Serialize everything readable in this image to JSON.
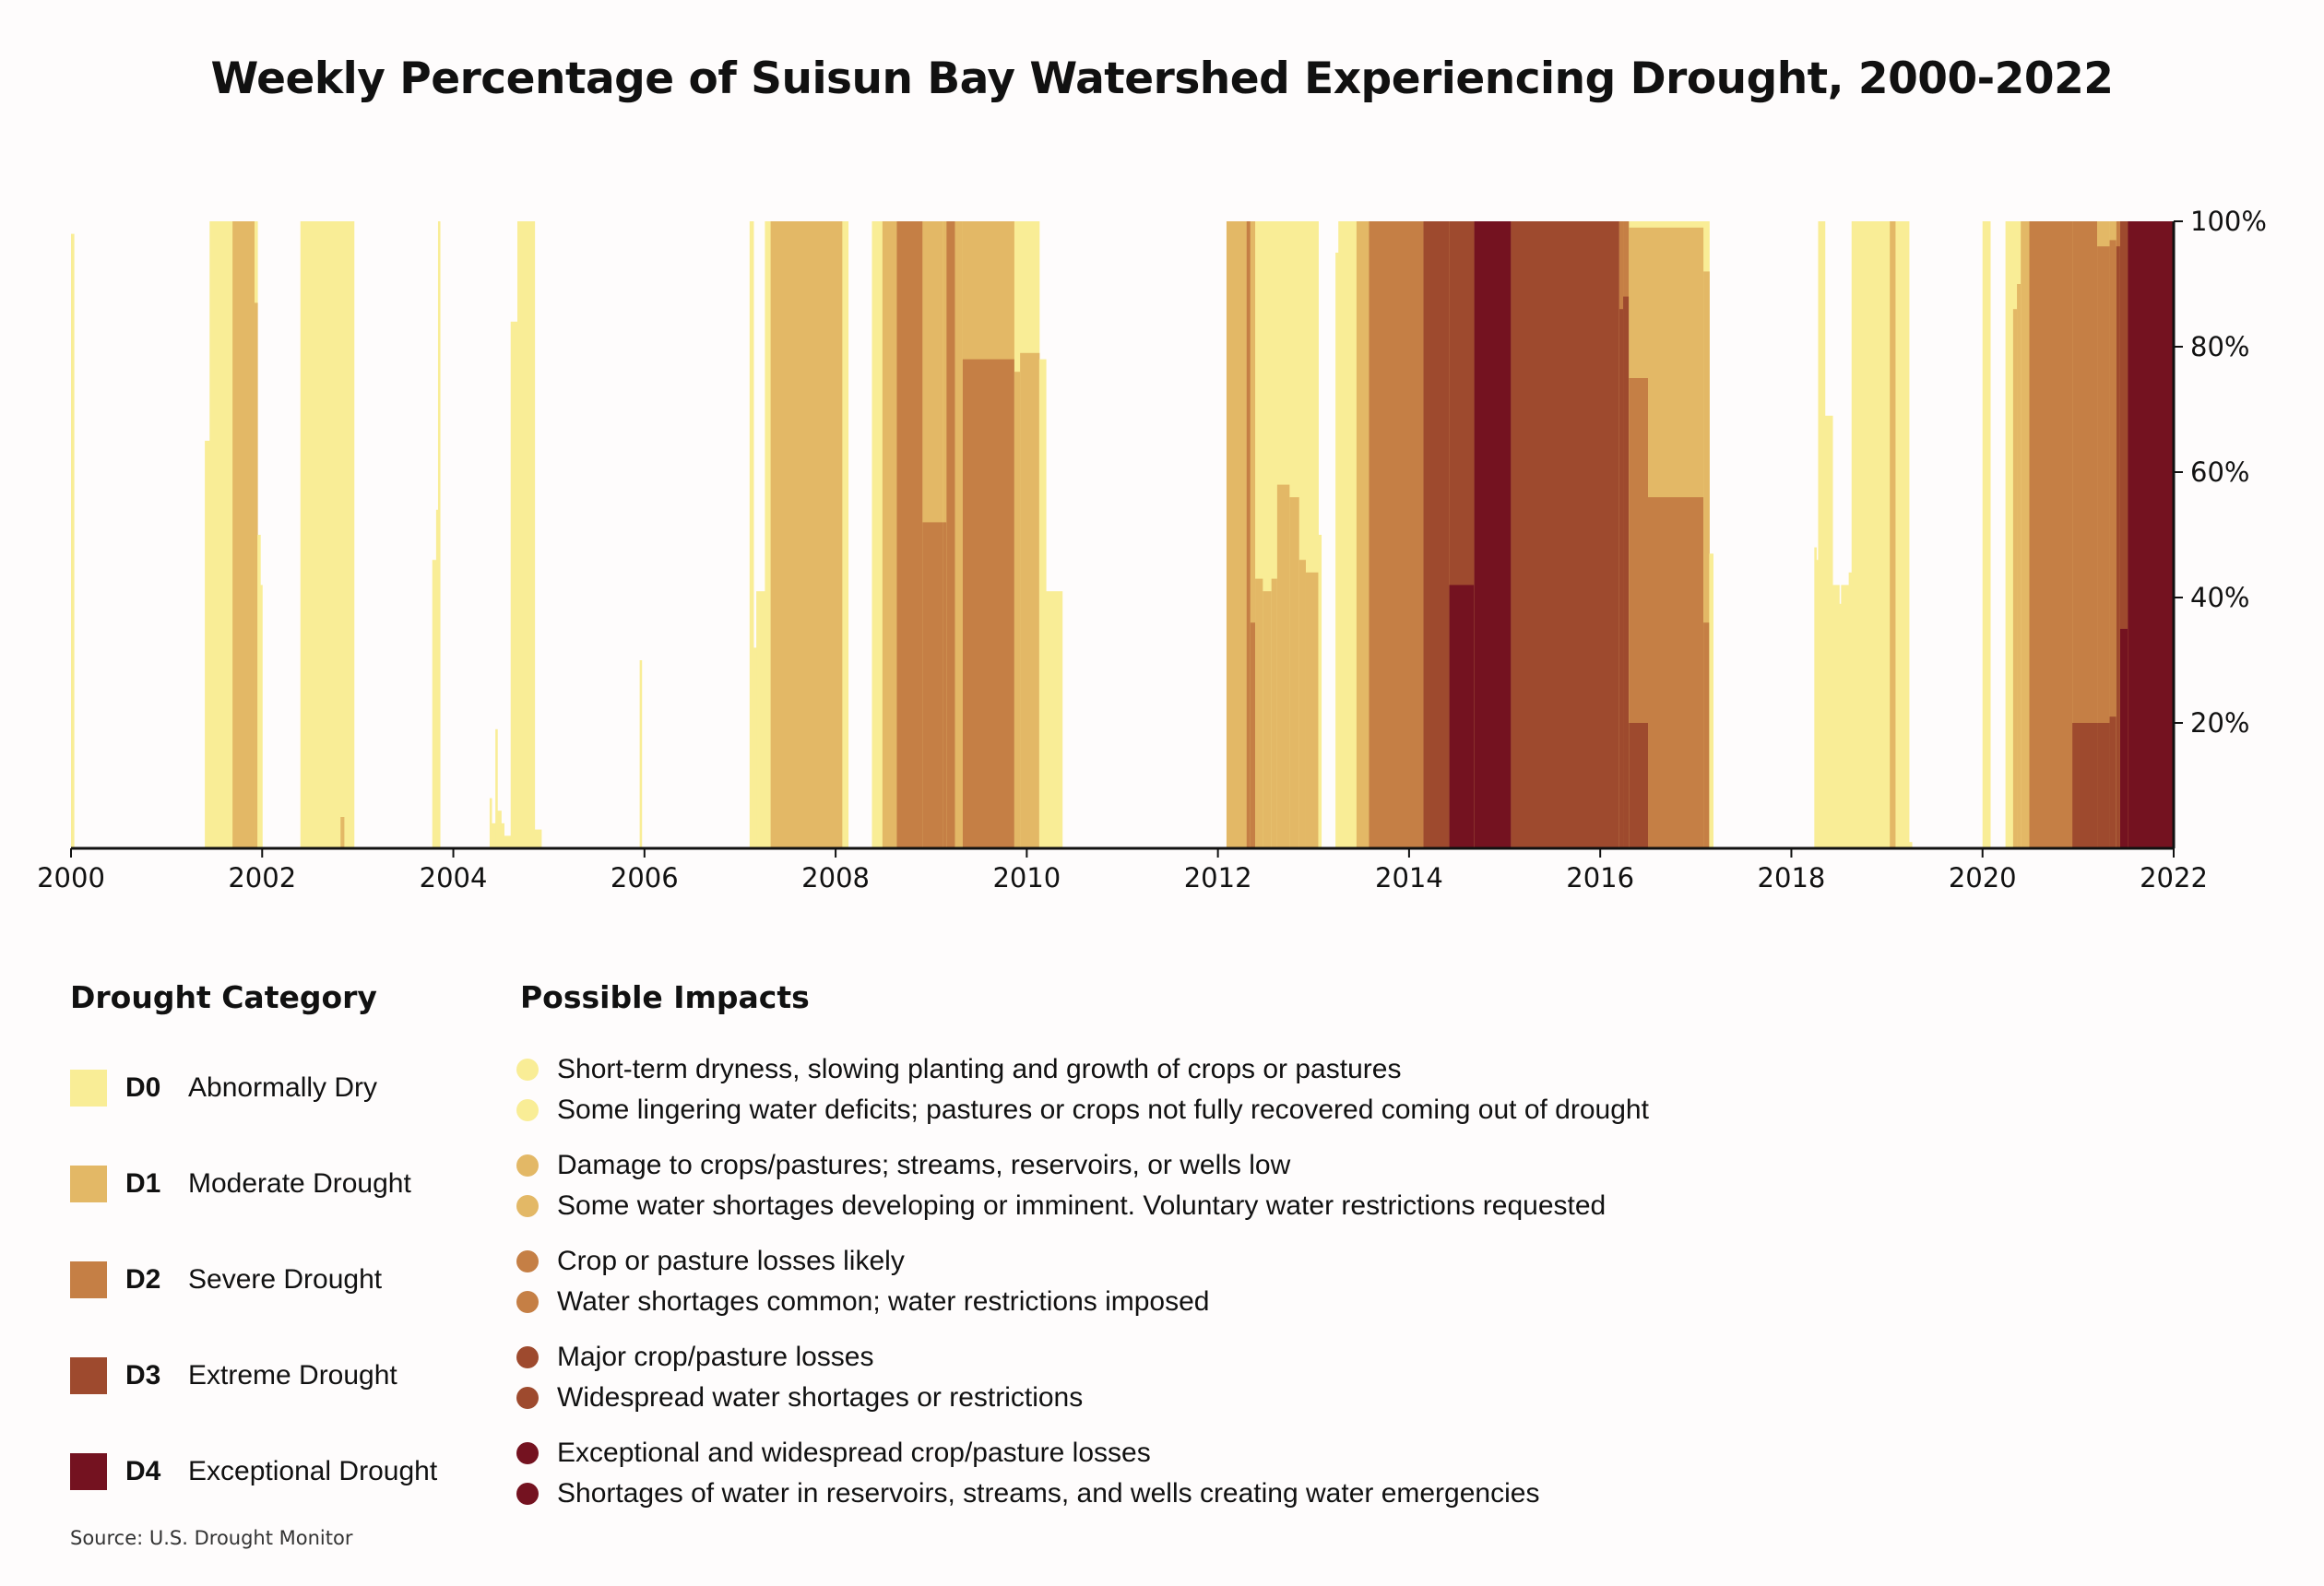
{
  "chart_data": {
    "type": "area",
    "title": "Weekly Percentage of Suisun Bay Watershed Experiencing Drought, 2000-2022",
    "xlabel": "",
    "ylabel": "",
    "xlim": [
      2000,
      2022
    ],
    "ylim": [
      0,
      100
    ],
    "x_ticks": [
      "2000",
      "2002",
      "2004",
      "2006",
      "2008",
      "2010",
      "2012",
      "2014",
      "2016",
      "2018",
      "2020",
      "2022"
    ],
    "x_tick_values": [
      2000,
      2002,
      2004,
      2006,
      2008,
      2010,
      2012,
      2014,
      2016,
      2018,
      2020,
      2022
    ],
    "y_ticks": [
      "20%",
      "40%",
      "60%",
      "80%",
      "100%"
    ],
    "y_tick_values": [
      20,
      40,
      60,
      80,
      100
    ],
    "y_axis_side": "right",
    "grid": false,
    "stacking": "cumulative (percent of area in category or worse)",
    "categories": [
      "D0",
      "D1",
      "D2",
      "D3",
      "D4"
    ],
    "colors": {
      "D0": "#f9ed96",
      "D1": "#e3b866",
      "D2": "#c57f45",
      "D3": "#9e4a2e",
      "D4": "#741220"
    },
    "segments": [
      {
        "start": 2000.0,
        "end": 2000.03,
        "D0": 98,
        "D1": 0,
        "D2": 0,
        "D3": 0,
        "D4": 0
      },
      {
        "start": 2001.4,
        "end": 2001.45,
        "D0": 65,
        "D1": 0,
        "D2": 0,
        "D3": 0,
        "D4": 0
      },
      {
        "start": 2001.45,
        "end": 2001.69,
        "D0": 100,
        "D1": 0,
        "D2": 0,
        "D3": 0,
        "D4": 0
      },
      {
        "start": 2001.69,
        "end": 2001.92,
        "D0": 100,
        "D1": 100,
        "D2": 0,
        "D3": 0,
        "D4": 0
      },
      {
        "start": 2001.92,
        "end": 2001.95,
        "D0": 100,
        "D1": 87,
        "D2": 0,
        "D3": 0,
        "D4": 0
      },
      {
        "start": 2001.95,
        "end": 2001.98,
        "D0": 50,
        "D1": 0,
        "D2": 0,
        "D3": 0,
        "D4": 0
      },
      {
        "start": 2001.98,
        "end": 2002.0,
        "D0": 42,
        "D1": 0,
        "D2": 0,
        "D3": 0,
        "D4": 0
      },
      {
        "start": 2002.4,
        "end": 2002.82,
        "D0": 100,
        "D1": 0,
        "D2": 0,
        "D3": 0,
        "D4": 0
      },
      {
        "start": 2002.82,
        "end": 2002.86,
        "D0": 100,
        "D1": 5,
        "D2": 0,
        "D3": 0,
        "D4": 0
      },
      {
        "start": 2002.86,
        "end": 2002.96,
        "D0": 100,
        "D1": 0,
        "D2": 0,
        "D3": 0,
        "D4": 0
      },
      {
        "start": 2003.78,
        "end": 2003.82,
        "D0": 46,
        "D1": 0,
        "D2": 0,
        "D3": 0,
        "D4": 0
      },
      {
        "start": 2003.82,
        "end": 2003.84,
        "D0": 54,
        "D1": 0,
        "D2": 0,
        "D3": 0,
        "D4": 0
      },
      {
        "start": 2003.84,
        "end": 2003.86,
        "D0": 100,
        "D1": 0,
        "D2": 0,
        "D3": 0,
        "D4": 0
      },
      {
        "start": 2004.38,
        "end": 2004.4,
        "D0": 8,
        "D1": 0,
        "D2": 0,
        "D3": 0,
        "D4": 0
      },
      {
        "start": 2004.4,
        "end": 2004.44,
        "D0": 4,
        "D1": 0,
        "D2": 0,
        "D3": 0,
        "D4": 0
      },
      {
        "start": 2004.44,
        "end": 2004.46,
        "D0": 19,
        "D1": 0,
        "D2": 0,
        "D3": 0,
        "D4": 0
      },
      {
        "start": 2004.46,
        "end": 2004.5,
        "D0": 6,
        "D1": 0,
        "D2": 0,
        "D3": 0,
        "D4": 0
      },
      {
        "start": 2004.5,
        "end": 2004.53,
        "D0": 4,
        "D1": 0,
        "D2": 0,
        "D3": 0,
        "D4": 0
      },
      {
        "start": 2004.53,
        "end": 2004.6,
        "D0": 2,
        "D1": 0,
        "D2": 0,
        "D3": 0,
        "D4": 0
      },
      {
        "start": 2004.6,
        "end": 2004.67,
        "D0": 84,
        "D1": 0,
        "D2": 0,
        "D3": 0,
        "D4": 0
      },
      {
        "start": 2004.67,
        "end": 2004.85,
        "D0": 100,
        "D1": 0,
        "D2": 0,
        "D3": 0,
        "D4": 0
      },
      {
        "start": 2004.85,
        "end": 2004.92,
        "D0": 3,
        "D1": 0,
        "D2": 0,
        "D3": 0,
        "D4": 0
      },
      {
        "start": 2005.95,
        "end": 2005.97,
        "D0": 30,
        "D1": 0,
        "D2": 0,
        "D3": 0,
        "D4": 0
      },
      {
        "start": 2007.1,
        "end": 2007.14,
        "D0": 100,
        "D1": 0,
        "D2": 0,
        "D3": 0,
        "D4": 0
      },
      {
        "start": 2007.14,
        "end": 2007.17,
        "D0": 32,
        "D1": 0,
        "D2": 0,
        "D3": 0,
        "D4": 0
      },
      {
        "start": 2007.17,
        "end": 2007.26,
        "D0": 41,
        "D1": 0,
        "D2": 0,
        "D3": 0,
        "D4": 0
      },
      {
        "start": 2007.26,
        "end": 2007.32,
        "D0": 100,
        "D1": 0,
        "D2": 0,
        "D3": 0,
        "D4": 0
      },
      {
        "start": 2007.32,
        "end": 2008.07,
        "D0": 100,
        "D1": 100,
        "D2": 0,
        "D3": 0,
        "D4": 0
      },
      {
        "start": 2008.07,
        "end": 2008.13,
        "D0": 100,
        "D1": 0,
        "D2": 0,
        "D3": 0,
        "D4": 0
      },
      {
        "start": 2008.38,
        "end": 2008.49,
        "D0": 100,
        "D1": 0,
        "D2": 0,
        "D3": 0,
        "D4": 0
      },
      {
        "start": 2008.49,
        "end": 2008.64,
        "D0": 100,
        "D1": 100,
        "D2": 0,
        "D3": 0,
        "D4": 0
      },
      {
        "start": 2008.64,
        "end": 2008.91,
        "D0": 100,
        "D1": 100,
        "D2": 100,
        "D3": 0,
        "D4": 0
      },
      {
        "start": 2008.91,
        "end": 2009.12,
        "D0": 100,
        "D1": 100,
        "D2": 52,
        "D3": 0,
        "D4": 0
      },
      {
        "start": 2009.12,
        "end": 2009.16,
        "D0": 100,
        "D1": 100,
        "D2": 52,
        "D3": 0,
        "D4": 0
      },
      {
        "start": 2009.16,
        "end": 2009.25,
        "D0": 100,
        "D1": 100,
        "D2": 100,
        "D3": 0,
        "D4": 0
      },
      {
        "start": 2009.25,
        "end": 2009.33,
        "D0": 100,
        "D1": 100,
        "D2": 0,
        "D3": 0,
        "D4": 0
      },
      {
        "start": 2009.33,
        "end": 2009.87,
        "D0": 100,
        "D1": 100,
        "D2": 78,
        "D3": 0,
        "D4": 0
      },
      {
        "start": 2009.87,
        "end": 2009.93,
        "D0": 100,
        "D1": 76,
        "D2": 0,
        "D3": 0,
        "D4": 0
      },
      {
        "start": 2009.93,
        "end": 2010.13,
        "D0": 100,
        "D1": 79,
        "D2": 0,
        "D3": 0,
        "D4": 0
      },
      {
        "start": 2010.13,
        "end": 2010.2,
        "D0": 78,
        "D1": 0,
        "D2": 0,
        "D3": 0,
        "D4": 0
      },
      {
        "start": 2010.2,
        "end": 2010.37,
        "D0": 41,
        "D1": 0,
        "D2": 0,
        "D3": 0,
        "D4": 0
      },
      {
        "start": 2012.09,
        "end": 2012.3,
        "D0": 100,
        "D1": 100,
        "D2": 0,
        "D3": 0,
        "D4": 0
      },
      {
        "start": 2012.3,
        "end": 2012.34,
        "D0": 100,
        "D1": 100,
        "D2": 100,
        "D3": 0,
        "D4": 0
      },
      {
        "start": 2012.34,
        "end": 2012.39,
        "D0": 100,
        "D1": 100,
        "D2": 36,
        "D3": 0,
        "D4": 0
      },
      {
        "start": 2012.39,
        "end": 2012.47,
        "D0": 100,
        "D1": 43,
        "D2": 0,
        "D3": 0,
        "D4": 0
      },
      {
        "start": 2012.47,
        "end": 2012.56,
        "D0": 100,
        "D1": 41,
        "D2": 0,
        "D3": 0,
        "D4": 0
      },
      {
        "start": 2012.56,
        "end": 2012.62,
        "D0": 100,
        "D1": 43,
        "D2": 0,
        "D3": 0,
        "D4": 0
      },
      {
        "start": 2012.62,
        "end": 2012.75,
        "D0": 100,
        "D1": 58,
        "D2": 0,
        "D3": 0,
        "D4": 0
      },
      {
        "start": 2012.75,
        "end": 2012.85,
        "D0": 100,
        "D1": 56,
        "D2": 0,
        "D3": 0,
        "D4": 0
      },
      {
        "start": 2012.85,
        "end": 2012.92,
        "D0": 100,
        "D1": 46,
        "D2": 0,
        "D3": 0,
        "D4": 0
      },
      {
        "start": 2012.92,
        "end": 2013.05,
        "D0": 100,
        "D1": 44,
        "D2": 0,
        "D3": 0,
        "D4": 0
      },
      {
        "start": 2013.05,
        "end": 2013.08,
        "D0": 50,
        "D1": 0,
        "D2": 0,
        "D3": 0,
        "D4": 0
      },
      {
        "start": 2013.23,
        "end": 2013.26,
        "D0": 95,
        "D1": 0,
        "D2": 0,
        "D3": 0,
        "D4": 0
      },
      {
        "start": 2013.26,
        "end": 2013.45,
        "D0": 100,
        "D1": 0,
        "D2": 0,
        "D3": 0,
        "D4": 0
      },
      {
        "start": 2013.45,
        "end": 2013.58,
        "D0": 100,
        "D1": 100,
        "D2": 0,
        "D3": 0,
        "D4": 0
      },
      {
        "start": 2013.58,
        "end": 2014.15,
        "D0": 100,
        "D1": 100,
        "D2": 100,
        "D3": 0,
        "D4": 0
      },
      {
        "start": 2014.15,
        "end": 2014.42,
        "D0": 100,
        "D1": 100,
        "D2": 100,
        "D3": 100,
        "D4": 0
      },
      {
        "start": 2014.42,
        "end": 2014.68,
        "D0": 100,
        "D1": 100,
        "D2": 100,
        "D3": 100,
        "D4": 42
      },
      {
        "start": 2014.68,
        "end": 2015.07,
        "D0": 100,
        "D1": 100,
        "D2": 100,
        "D3": 100,
        "D4": 100
      },
      {
        "start": 2015.07,
        "end": 2016.2,
        "D0": 100,
        "D1": 100,
        "D2": 100,
        "D3": 100,
        "D4": 0
      },
      {
        "start": 2016.2,
        "end": 2016.24,
        "D0": 100,
        "D1": 100,
        "D2": 100,
        "D3": 86,
        "D4": 0
      },
      {
        "start": 2016.24,
        "end": 2016.3,
        "D0": 100,
        "D1": 100,
        "D2": 100,
        "D3": 88,
        "D4": 0
      },
      {
        "start": 2016.3,
        "end": 2016.5,
        "D0": 100,
        "D1": 99,
        "D2": 75,
        "D3": 20,
        "D4": 0
      },
      {
        "start": 2016.5,
        "end": 2017.08,
        "D0": 100,
        "D1": 99,
        "D2": 56,
        "D3": 0,
        "D4": 0
      },
      {
        "start": 2017.08,
        "end": 2017.14,
        "D0": 100,
        "D1": 92,
        "D2": 36,
        "D3": 0,
        "D4": 0
      },
      {
        "start": 2017.14,
        "end": 2017.18,
        "D0": 47,
        "D1": 0,
        "D2": 0,
        "D3": 0,
        "D4": 0
      },
      {
        "start": 2018.24,
        "end": 2018.26,
        "D0": 48,
        "D1": 0,
        "D2": 0,
        "D3": 0,
        "D4": 0
      },
      {
        "start": 2018.26,
        "end": 2018.28,
        "D0": 46,
        "D1": 0,
        "D2": 0,
        "D3": 0,
        "D4": 0
      },
      {
        "start": 2018.28,
        "end": 2018.35,
        "D0": 100,
        "D1": 0,
        "D2": 0,
        "D3": 0,
        "D4": 0
      },
      {
        "start": 2018.35,
        "end": 2018.43,
        "D0": 69,
        "D1": 0,
        "D2": 0,
        "D3": 0,
        "D4": 0
      },
      {
        "start": 2018.43,
        "end": 2018.5,
        "D0": 42,
        "D1": 0,
        "D2": 0,
        "D3": 0,
        "D4": 0
      },
      {
        "start": 2018.5,
        "end": 2018.52,
        "D0": 39,
        "D1": 0,
        "D2": 0,
        "D3": 0,
        "D4": 0
      },
      {
        "start": 2018.52,
        "end": 2018.6,
        "D0": 42,
        "D1": 0,
        "D2": 0,
        "D3": 0,
        "D4": 0
      },
      {
        "start": 2018.6,
        "end": 2018.63,
        "D0": 44,
        "D1": 0,
        "D2": 0,
        "D3": 0,
        "D4": 0
      },
      {
        "start": 2018.63,
        "end": 2019.03,
        "D0": 100,
        "D1": 0,
        "D2": 0,
        "D3": 0,
        "D4": 0
      },
      {
        "start": 2019.03,
        "end": 2019.09,
        "D0": 100,
        "D1": 100,
        "D2": 0,
        "D3": 0,
        "D4": 0
      },
      {
        "start": 2019.09,
        "end": 2019.23,
        "D0": 100,
        "D1": 0,
        "D2": 0,
        "D3": 0,
        "D4": 0
      },
      {
        "start": 2019.23,
        "end": 2019.26,
        "D0": 1,
        "D1": 0,
        "D2": 0,
        "D3": 0,
        "D4": 0
      },
      {
        "start": 2020.0,
        "end": 2020.08,
        "D0": 100,
        "D1": 0,
        "D2": 0,
        "D3": 0,
        "D4": 0
      },
      {
        "start": 2020.24,
        "end": 2020.32,
        "D0": 100,
        "D1": 0,
        "D2": 0,
        "D3": 0,
        "D4": 0
      },
      {
        "start": 2020.32,
        "end": 2020.36,
        "D0": 100,
        "D1": 86,
        "D2": 0,
        "D3": 0,
        "D4": 0
      },
      {
        "start": 2020.36,
        "end": 2020.4,
        "D0": 100,
        "D1": 90,
        "D2": 0,
        "D3": 0,
        "D4": 0
      },
      {
        "start": 2020.4,
        "end": 2020.49,
        "D0": 100,
        "D1": 100,
        "D2": 0,
        "D3": 0,
        "D4": 0
      },
      {
        "start": 2020.49,
        "end": 2020.94,
        "D0": 100,
        "D1": 100,
        "D2": 100,
        "D3": 0,
        "D4": 0
      },
      {
        "start": 2020.94,
        "end": 2021.2,
        "D0": 100,
        "D1": 100,
        "D2": 100,
        "D3": 20,
        "D4": 0
      },
      {
        "start": 2021.2,
        "end": 2021.33,
        "D0": 100,
        "D1": 100,
        "D2": 96,
        "D3": 20,
        "D4": 0
      },
      {
        "start": 2021.33,
        "end": 2021.4,
        "D0": 100,
        "D1": 100,
        "D2": 97,
        "D3": 21,
        "D4": 0
      },
      {
        "start": 2021.4,
        "end": 2021.44,
        "D0": 100,
        "D1": 100,
        "D2": 100,
        "D3": 96,
        "D4": 0
      },
      {
        "start": 2021.44,
        "end": 2021.52,
        "D0": 100,
        "D1": 100,
        "D2": 100,
        "D3": 100,
        "D4": 35
      },
      {
        "start": 2021.52,
        "end": 2022.0,
        "D0": 100,
        "D1": 100,
        "D2": 100,
        "D3": 100,
        "D4": 100
      }
    ],
    "source": "Source: U.S. Drought Monitor"
  },
  "legend": {
    "title": "Drought Category",
    "items": [
      {
        "code": "D0",
        "label": "Abnormally Dry",
        "color": "#f9ed96"
      },
      {
        "code": "D1",
        "label": "Moderate Drought",
        "color": "#e3b866"
      },
      {
        "code": "D2",
        "label": "Severe Drought",
        "color": "#c57f45"
      },
      {
        "code": "D3",
        "label": "Extreme Drought",
        "color": "#9e4a2e"
      },
      {
        "code": "D4",
        "label": "Exceptional Drought",
        "color": "#741220"
      }
    ]
  },
  "impacts": {
    "title": "Possible Impacts",
    "groups": [
      {
        "color": "#f9ed96",
        "items": [
          "Short-term dryness, slowing planting and growth of crops or pastures",
          "Some lingering water deficits; pastures or crops not fully recovered coming out of drought"
        ]
      },
      {
        "color": "#e3b866",
        "items": [
          "Damage to crops/pastures; streams, reservoirs, or wells low",
          "Some water shortages developing or imminent. Voluntary water restrictions requested"
        ]
      },
      {
        "color": "#c57f45",
        "items": [
          "Crop or pasture losses likely",
          "Water shortages common; water restrictions imposed"
        ]
      },
      {
        "color": "#9e4a2e",
        "items": [
          "Major crop/pasture losses",
          "Widespread water shortages or restrictions"
        ]
      },
      {
        "color": "#741220",
        "items": [
          "Exceptional and widespread crop/pasture losses",
          "Shortages of water in reservoirs, streams, and wells creating water emergencies"
        ]
      }
    ]
  }
}
